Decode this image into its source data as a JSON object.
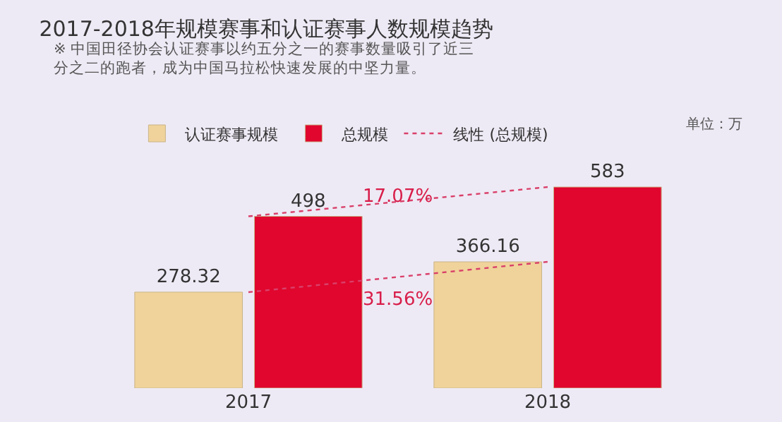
{
  "chart_data": {
    "type": "bar",
    "title": "2017-2018年规模赛事和认证赛事人数规模趋势",
    "subtitle": "※ 中国田径协会认证赛事以约五分之一的赛事数量吸引了近三分之二的跑者，成为中国马拉松快速发展的中坚力量。",
    "categories": [
      "2017",
      "2018"
    ],
    "series": [
      {
        "name": "认证赛事规模",
        "color": "#f0d39a",
        "values": [
          278.32,
          366.16
        ],
        "value_labels": [
          "278.32",
          "366.16"
        ]
      },
      {
        "name": "总规模",
        "color": "#e0062d",
        "values": [
          498,
          583
        ],
        "value_labels": [
          "498",
          "583"
        ]
      },
      {
        "type": "line",
        "color": "#d9406a",
        "values": [
          278.32,
          366.16
        ],
        "line_style": "dotted"
      },
      {
        "type": "line",
        "name": "线性 (总规模)",
        "color": "#d9406a",
        "values": [
          498,
          583
        ],
        "line_style": "dotted"
      }
    ],
    "annotations": [
      "单位：万",
      "17.07%",
      "31.56%"
    ],
    "legend": "top",
    "tick_labels": "x",
    "grid": false
  }
}
